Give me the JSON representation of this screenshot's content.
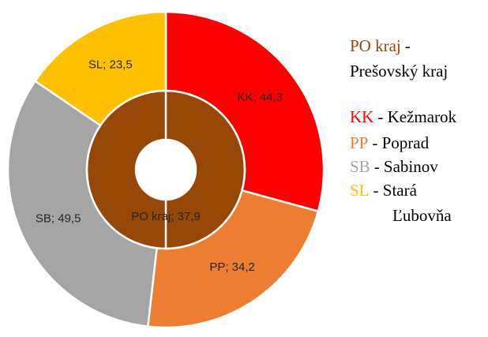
{
  "chart_data": {
    "type": "donut",
    "categories": [
      "KK",
      "PP",
      "SB",
      "SL"
    ],
    "values": [
      44.3,
      34.2,
      49.5,
      23.5
    ],
    "value_labels": [
      "KK; 44,3",
      "PP; 34,2",
      "SB; 49,5",
      "SL; 23,5"
    ],
    "colors": [
      "#ff0000",
      "#ed7d31",
      "#a5a5a5",
      "#ffc000"
    ],
    "inner": {
      "categories": [
        "PO kraj"
      ],
      "values": [
        37.9
      ],
      "value_labels": [
        "PO kraj; 37,9"
      ],
      "colors": [
        "#974706"
      ]
    },
    "legend": [
      [
        "-",
        "Prešovský kraj"
      ],
      [
        "- Kežmarok"
      ],
      [
        "- Poprad"
      ],
      [
        "- Sabinov"
      ],
      [
        "- Stará",
        "Ľubovňa"
      ]
    ]
  }
}
